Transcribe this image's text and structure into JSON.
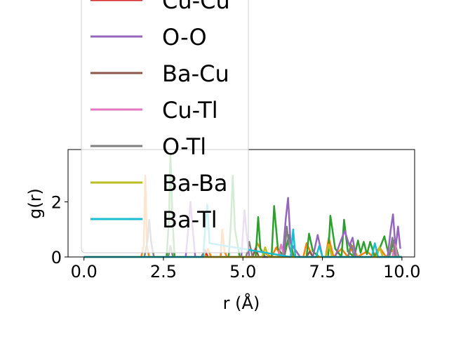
{
  "chart_data": {
    "type": "line",
    "xlabel": "r (Å)",
    "ylabel": "g(r)",
    "xlim": [
      -0.5,
      10.4
    ],
    "ylim": [
      0,
      3.9
    ],
    "xticks": [
      0.0,
      2.5,
      5.0,
      7.5,
      10.0
    ],
    "xtick_labels": [
      "0.0",
      "2.5",
      "5.0",
      "7.5",
      "10.0"
    ],
    "yticks": [
      0,
      2
    ],
    "ytick_labels": [
      "0",
      "2"
    ],
    "grid": false,
    "legend_position": "upper-left, overlapping the plot",
    "colors": [
      "#1f77b4",
      "#ff7f0e",
      "#2ca02c",
      "#d62728",
      "#9467bd",
      "#8c564b",
      "#e377c2",
      "#7f7f7f",
      "#bcbd22",
      "#17becf"
    ],
    "series": [
      {
        "name": "",
        "color": "#1f77b4",
        "x": [
          0,
          1.8,
          2.0,
          2.2,
          4.0,
          6.0,
          8.0,
          10.0
        ],
        "y": [
          0,
          0,
          0,
          0,
          0,
          0,
          0,
          0
        ]
      },
      {
        "name": "",
        "color": "#ff7f0e",
        "x": [
          0,
          1.8,
          1.88,
          1.93,
          1.98,
          2.05,
          2.5,
          3.8,
          3.9,
          4.0,
          4.3,
          4.35,
          4.42,
          4.5,
          5.3,
          5.45,
          5.6,
          5.9,
          6.05,
          6.2,
          6.9,
          7.0,
          7.2,
          7.6,
          7.7,
          7.85,
          8.1,
          8.3,
          8.45,
          8.6,
          8.9,
          9.1,
          9.3,
          9.5,
          9.7,
          9.8,
          10.0
        ],
        "y": [
          0,
          0,
          0.4,
          2.95,
          0.4,
          0,
          0,
          0,
          0.3,
          0,
          0,
          1.0,
          0.2,
          0,
          0,
          0.5,
          0.2,
          0,
          0.35,
          0,
          0,
          0.5,
          0,
          0,
          0.7,
          0,
          0.3,
          0,
          0.4,
          0,
          0.2,
          0,
          0.35,
          0,
          0.25,
          0,
          0
        ]
      },
      {
        "name": "",
        "color": "#2ca02c",
        "x": [
          0,
          2.6,
          2.68,
          2.72,
          2.78,
          2.85,
          4.55,
          4.62,
          4.68,
          4.75,
          4.9,
          5.4,
          5.48,
          5.55,
          5.7,
          5.9,
          5.98,
          6.1,
          6.3,
          6.45,
          6.6,
          7.0,
          7.08,
          7.2,
          7.4,
          7.68,
          7.75,
          7.9,
          8.1,
          8.18,
          8.3,
          8.5,
          8.62,
          8.7,
          8.8,
          8.9,
          9.0,
          9.15,
          9.3,
          9.45,
          9.6,
          9.75,
          9.9
        ],
        "y": [
          0,
          0,
          1.5,
          3.75,
          1.5,
          0,
          0,
          1.2,
          2.95,
          1.0,
          0,
          0,
          1.45,
          0.3,
          0,
          0,
          1.85,
          0.3,
          0,
          0.8,
          0,
          0,
          0.85,
          0.2,
          0,
          0,
          1.5,
          0.3,
          0,
          1.35,
          0.2,
          0,
          0.6,
          0.15,
          0.55,
          0.1,
          0.55,
          0,
          0.3,
          0.75,
          0,
          0.6,
          0
        ]
      },
      {
        "name": "Cu-Cu",
        "color": "#d62728",
        "x": [
          0,
          3.7,
          3.8,
          3.9,
          4.0,
          10.0
        ],
        "y": [
          0,
          0,
          0.25,
          0,
          0,
          0
        ]
      },
      {
        "name": "O-O",
        "color": "#9467bd",
        "x": [
          0,
          3.2,
          3.28,
          3.35,
          3.42,
          3.5,
          4.95,
          5.05,
          5.12,
          5.2,
          6.25,
          6.35,
          6.42,
          6.5,
          6.8,
          7.2,
          7.35,
          7.5,
          7.9,
          8.05,
          8.2,
          8.35,
          8.45,
          8.55,
          9.55,
          9.65,
          9.72,
          9.8,
          9.88,
          9.95
        ],
        "y": [
          0,
          0,
          1.0,
          2.0,
          1.0,
          0,
          0,
          1.7,
          0.8,
          0,
          0,
          1.4,
          2.15,
          0.5,
          0,
          0,
          0.8,
          0,
          0,
          0.5,
          0.95,
          0.4,
          0.7,
          0,
          0,
          1.0,
          1.55,
          0.3,
          1.1,
          0.3
        ]
      },
      {
        "name": "Ba-Cu",
        "color": "#8c564b",
        "x": [
          0,
          5.3,
          5.4,
          5.5,
          7.0,
          7.1,
          7.2,
          10.0
        ],
        "y": [
          0,
          0,
          0.3,
          0,
          0,
          0.2,
          0,
          0
        ]
      },
      {
        "name": "Cu-Tl",
        "color": "#e377c2",
        "x": [
          0,
          4.0,
          4.2,
          6.1,
          6.2,
          6.3,
          9.7,
          9.78,
          9.86,
          10.0
        ],
        "y": [
          0,
          0,
          0,
          0,
          0.45,
          0,
          0,
          0.45,
          0,
          0
        ]
      },
      {
        "name": "O-Tl",
        "color": "#7f7f7f",
        "x": [
          0,
          1.9,
          2.0,
          2.05,
          2.12,
          2.2,
          2.65,
          2.72,
          2.8,
          4.0,
          5.1,
          5.2,
          5.3,
          6.3,
          6.38,
          6.45,
          6.55,
          8.3,
          8.4,
          8.5,
          9.6,
          9.7,
          9.8,
          10.0
        ],
        "y": [
          0,
          0,
          0.6,
          1.35,
          0.5,
          0,
          0,
          0.4,
          0,
          0,
          0,
          0.55,
          0,
          0,
          1.1,
          0.4,
          0,
          0,
          0.45,
          0,
          0,
          0.7,
          0,
          0
        ]
      },
      {
        "name": "Ba-Ba",
        "color": "#bcbd22",
        "x": [
          0,
          5.6,
          5.7,
          5.8,
          7.6,
          7.7,
          7.8,
          9.2,
          9.3,
          9.4,
          10.0
        ],
        "y": [
          0,
          0,
          0.35,
          0,
          0,
          0.45,
          0,
          0,
          0.35,
          0,
          0
        ]
      },
      {
        "name": "Ba-Tl",
        "color": "#17becf",
        "x": [
          0,
          3.75,
          3.82,
          3.88,
          3.95,
          6.5,
          6.58,
          6.65,
          7.3,
          7.4,
          7.5,
          9.05,
          9.15,
          9.25,
          10.0
        ],
        "y": [
          0,
          0,
          1.2,
          1.9,
          0.5,
          0,
          1.0,
          0,
          0,
          0.4,
          0,
          0,
          0.5,
          0,
          0
        ]
      }
    ]
  }
}
